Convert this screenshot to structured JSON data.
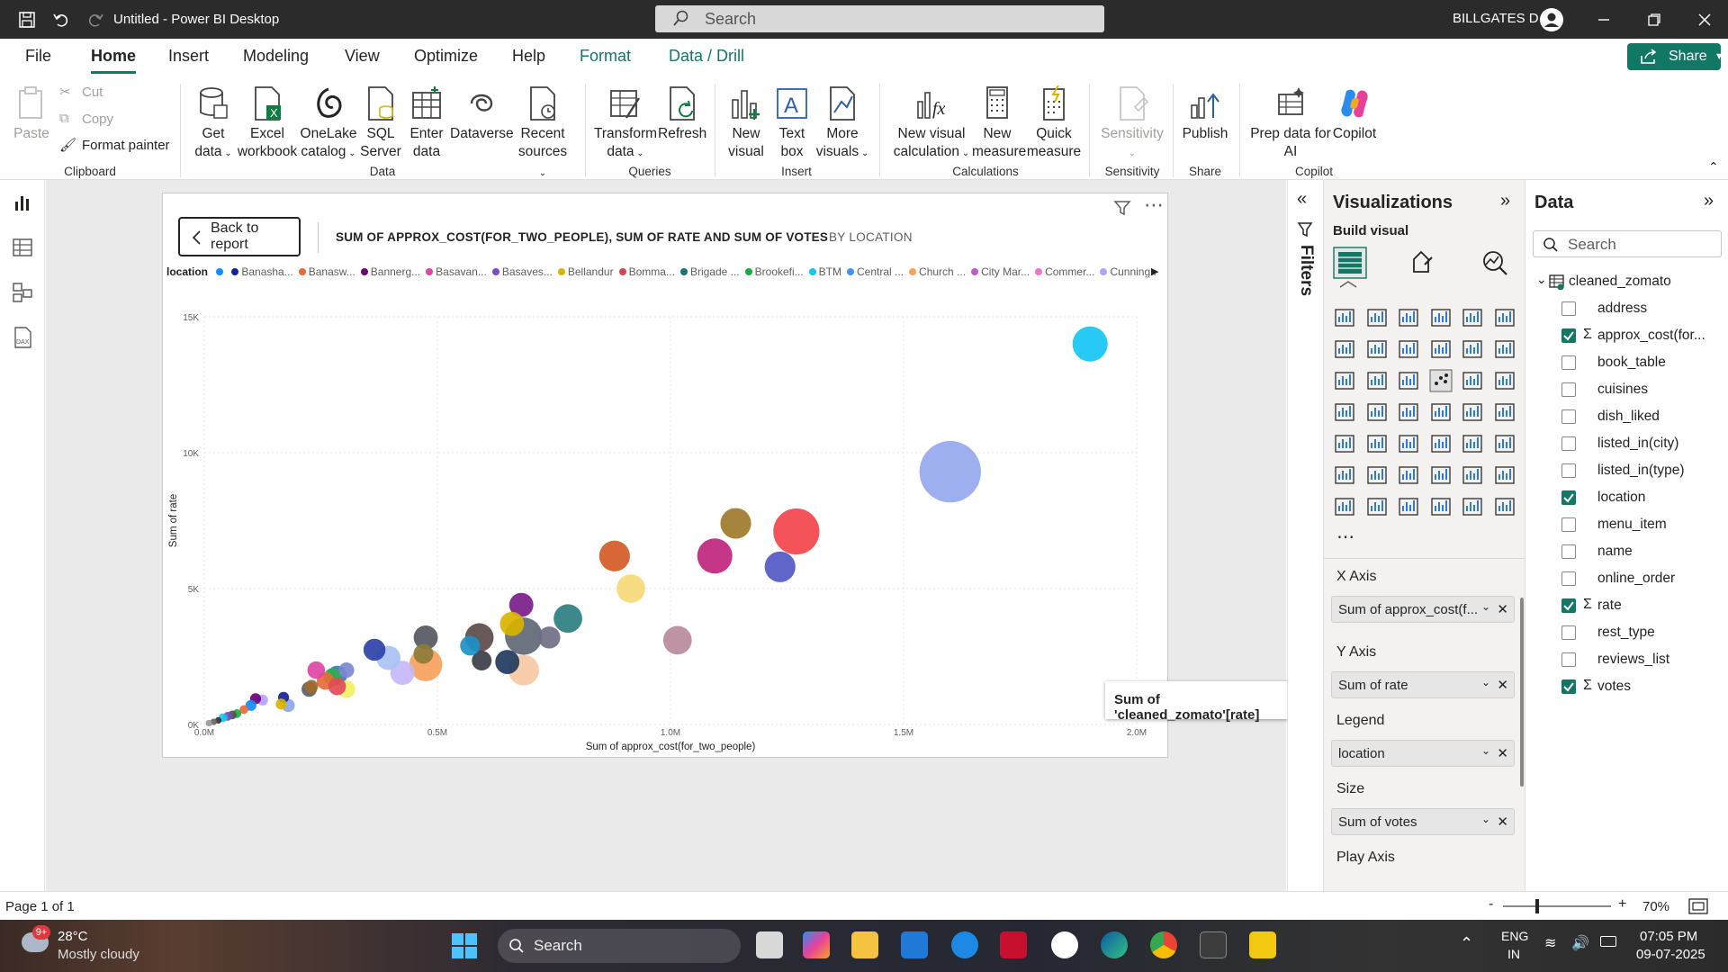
{
  "titlebar": {
    "app_title": "Untitled - Power BI Desktop",
    "search_placeholder": "Search",
    "user_name": "BILLGATES D"
  },
  "menu": {
    "tabs": [
      "File",
      "Home",
      "Insert",
      "Modeling",
      "View",
      "Optimize",
      "Help",
      "Format",
      "Data / Drill"
    ],
    "share": "Share"
  },
  "ribbon": {
    "clipboard": {
      "paste": "Paste",
      "cut": "Cut",
      "copy": "Copy",
      "format_painter": "Format painter",
      "group": "Clipboard"
    },
    "data": {
      "get_data_1": "Get",
      "get_data_2": "data",
      "excel_1": "Excel",
      "excel_2": "workbook",
      "onelake_1": "OneLake",
      "onelake_2": "catalog",
      "sql_1": "SQL",
      "sql_2": "Server",
      "enter_1": "Enter",
      "enter_2": "data",
      "dataverse": "Dataverse",
      "recent_1": "Recent",
      "recent_2": "sources",
      "group": "Data"
    },
    "queries": {
      "transform_1": "Transform",
      "transform_2": "data",
      "refresh": "Refresh",
      "group": "Queries"
    },
    "insert": {
      "new_visual_1": "New",
      "new_visual_2": "visual",
      "text_box_1": "Text",
      "text_box_2": "box",
      "more_visuals_1": "More",
      "more_visuals_2": "visuals",
      "group": "Insert"
    },
    "calculations": {
      "new_calc_1": "New visual",
      "new_calc_2": "calculation",
      "new_measure_1": "New",
      "new_measure_2": "measure",
      "quick_measure_1": "Quick",
      "quick_measure_2": "measure",
      "group": "Calculations"
    },
    "sensitivity": {
      "label": "Sensitivity",
      "group": "Sensitivity"
    },
    "share": {
      "publish": "Publish",
      "group": "Share"
    },
    "copilot": {
      "prep_1": "Prep data for",
      "prep_2": "AI",
      "copilot": "Copilot",
      "group": "Copilot"
    }
  },
  "visual": {
    "back_label": "Back to report",
    "title": "SUM OF APPROX_COST(FOR_TWO_PEOPLE), SUM OF RATE AND SUM OF VOTES",
    "by": "BY LOCATION",
    "legend_title": "location",
    "legend_items": [
      {
        "name": "",
        "color": "#118DFF"
      },
      {
        "name": "Banasha...",
        "color": "#12239E"
      },
      {
        "name": "Banasw...",
        "color": "#E66C37"
      },
      {
        "name": "Bannerg...",
        "color": "#6B007B"
      },
      {
        "name": "Basavan...",
        "color": "#E044A7"
      },
      {
        "name": "Basaves...",
        "color": "#744EC2"
      },
      {
        "name": "Bellandur",
        "color": "#D9B300"
      },
      {
        "name": "Bomma...",
        "color": "#D64550"
      },
      {
        "name": "Brigade ...",
        "color": "#197278"
      },
      {
        "name": "Brookefi...",
        "color": "#1AAB40"
      },
      {
        "name": "BTM",
        "color": "#15C6F4"
      },
      {
        "name": "Central ...",
        "color": "#4092FF"
      },
      {
        "name": "Church ...",
        "color": "#FFA058"
      },
      {
        "name": "City Mar...",
        "color": "#BE5DC9"
      },
      {
        "name": "Commer...",
        "color": "#F472D0"
      },
      {
        "name": "Cunning...",
        "color": "#B5A1FF"
      }
    ],
    "tooltip": "Sum of 'cleaned_zomato'[rate]"
  },
  "chart_data": {
    "type": "scatter",
    "title": "",
    "xlabel": "Sum of approx_cost(for_two_people)",
    "ylabel": "Sum of rate",
    "xlim": [
      0,
      2000000
    ],
    "ylim": [
      0,
      15000
    ],
    "x_ticks": [
      "0.0M",
      "0.5M",
      "1.0M",
      "1.5M",
      "2.0M"
    ],
    "y_ticks": [
      "0K",
      "5K",
      "10K",
      "15K"
    ],
    "size_field": "Sum of votes",
    "points": [
      {
        "x": 1900000,
        "y": 14000,
        "s": 16,
        "color": "#15C6F4"
      },
      {
        "x": 1600000,
        "y": 9300,
        "s": 28,
        "color": "#95A8EE"
      },
      {
        "x": 1270000,
        "y": 7100,
        "s": 21,
        "color": "#F2444B"
      },
      {
        "x": 1140000,
        "y": 7400,
        "s": 14,
        "color": "#9E7A2A"
      },
      {
        "x": 1095000,
        "y": 6200,
        "s": 16,
        "color": "#C0267C"
      },
      {
        "x": 1235000,
        "y": 5800,
        "s": 14,
        "color": "#5258C6"
      },
      {
        "x": 880000,
        "y": 6200,
        "s": 14,
        "color": "#D45A25"
      },
      {
        "x": 915000,
        "y": 5000,
        "s": 13,
        "color": "#F7D97A"
      },
      {
        "x": 1015000,
        "y": 3100,
        "s": 13,
        "color": "#B98A9D"
      },
      {
        "x": 780000,
        "y": 3900,
        "s": 13,
        "color": "#2B7E80"
      },
      {
        "x": 685000,
        "y": 3250,
        "s": 17,
        "color": "#606776"
      },
      {
        "x": 685000,
        "y": 2000,
        "s": 14,
        "color": "#F7C9A5"
      },
      {
        "x": 650000,
        "y": 2300,
        "s": 11,
        "color": "#223A5E"
      },
      {
        "x": 740000,
        "y": 3200,
        "s": 10,
        "color": "#6E6E85"
      },
      {
        "x": 680000,
        "y": 4400,
        "s": 11,
        "color": "#7A1D8A"
      },
      {
        "x": 660000,
        "y": 3700,
        "s": 11,
        "color": "#D9B300"
      },
      {
        "x": 590000,
        "y": 3200,
        "s": 13,
        "color": "#5B4A4A"
      },
      {
        "x": 595000,
        "y": 2350,
        "s": 9,
        "color": "#3D3D49"
      },
      {
        "x": 570000,
        "y": 2900,
        "s": 9,
        "color": "#1A91C7"
      },
      {
        "x": 475000,
        "y": 2200,
        "s": 15,
        "color": "#F7A25A"
      },
      {
        "x": 475000,
        "y": 3200,
        "s": 11,
        "color": "#54595F"
      },
      {
        "x": 470000,
        "y": 2600,
        "s": 9,
        "color": "#8D7B3A"
      },
      {
        "x": 425000,
        "y": 1900,
        "s": 11,
        "color": "#C7B8F7"
      },
      {
        "x": 395000,
        "y": 2450,
        "s": 11,
        "color": "#A9C2F2"
      },
      {
        "x": 365000,
        "y": 2750,
        "s": 10,
        "color": "#2C42AA"
      },
      {
        "x": 305000,
        "y": 1300,
        "s": 8,
        "color": "#F0F064"
      },
      {
        "x": 285000,
        "y": 1800,
        "s": 9,
        "color": "#3C7ABF"
      },
      {
        "x": 275000,
        "y": 1750,
        "s": 8,
        "color": "#2EAE4E"
      },
      {
        "x": 260000,
        "y": 1600,
        "s": 8,
        "color": "#E66C37"
      },
      {
        "x": 240000,
        "y": 2000,
        "s": 8,
        "color": "#E044A7"
      },
      {
        "x": 225000,
        "y": 1300,
        "s": 7,
        "color": "#606060"
      },
      {
        "x": 285000,
        "y": 1400,
        "s": 8,
        "color": "#E44A57"
      },
      {
        "x": 305000,
        "y": 2000,
        "s": 7,
        "color": "#7B88D2"
      },
      {
        "x": 230000,
        "y": 1400,
        "s": 6,
        "color": "#9E6A2E"
      },
      {
        "x": 180000,
        "y": 700,
        "s": 6,
        "color": "#8EA6E4"
      },
      {
        "x": 170000,
        "y": 1000,
        "s": 5,
        "color": "#12239E"
      },
      {
        "x": 165000,
        "y": 750,
        "s": 5,
        "color": "#D9B300"
      },
      {
        "x": 125000,
        "y": 900,
        "s": 5,
        "color": "#B5A1FF"
      },
      {
        "x": 110000,
        "y": 950,
        "s": 5,
        "color": "#6B007B"
      },
      {
        "x": 100000,
        "y": 700,
        "s": 5,
        "color": "#118DFF"
      },
      {
        "x": 85000,
        "y": 550,
        "s": 4,
        "color": "#E66C37"
      },
      {
        "x": 70000,
        "y": 400,
        "s": 4,
        "color": "#1AAB40"
      },
      {
        "x": 60000,
        "y": 350,
        "s": 4,
        "color": "#505050"
      },
      {
        "x": 50000,
        "y": 300,
        "s": 4,
        "color": "#744EC2"
      },
      {
        "x": 40000,
        "y": 250,
        "s": 4,
        "color": "#15C6F4"
      },
      {
        "x": 30000,
        "y": 150,
        "s": 3,
        "color": "#333333"
      },
      {
        "x": 20000,
        "y": 100,
        "s": 3,
        "color": "#666666"
      },
      {
        "x": 10000,
        "y": 50,
        "s": 3,
        "color": "#999999"
      }
    ]
  },
  "filters_label": "Filters",
  "viz_pane": {
    "title": "Visualizations",
    "build_visual": "Build visual",
    "wells": [
      {
        "label": "X Axis",
        "value": "Sum of approx_cost(f..."
      },
      {
        "label": "Y Axis",
        "value": "Sum of rate"
      },
      {
        "label": "Legend",
        "value": "location"
      },
      {
        "label": "Size",
        "value": "Sum of votes"
      },
      {
        "label": "Play Axis",
        "value": ""
      }
    ]
  },
  "data_pane": {
    "title": "Data",
    "search_placeholder": "Search",
    "table_name": "cleaned_zomato",
    "fields": [
      {
        "name": "address",
        "checked": false,
        "sigma": false
      },
      {
        "name": "approx_cost(for...",
        "checked": true,
        "sigma": true
      },
      {
        "name": "book_table",
        "checked": false,
        "sigma": false
      },
      {
        "name": "cuisines",
        "checked": false,
        "sigma": false
      },
      {
        "name": "dish_liked",
        "checked": false,
        "sigma": false
      },
      {
        "name": "listed_in(city)",
        "checked": false,
        "sigma": false
      },
      {
        "name": "listed_in(type)",
        "checked": false,
        "sigma": false
      },
      {
        "name": "location",
        "checked": true,
        "sigma": false
      },
      {
        "name": "menu_item",
        "checked": false,
        "sigma": false
      },
      {
        "name": "name",
        "checked": false,
        "sigma": false
      },
      {
        "name": "online_order",
        "checked": false,
        "sigma": false
      },
      {
        "name": "rate",
        "checked": true,
        "sigma": true
      },
      {
        "name": "rest_type",
        "checked": false,
        "sigma": false
      },
      {
        "name": "reviews_list",
        "checked": false,
        "sigma": false
      },
      {
        "name": "votes",
        "checked": true,
        "sigma": true
      }
    ]
  },
  "status": {
    "page": "Page 1 of 1",
    "zoom": "70%"
  },
  "taskbar": {
    "weather_temp": "28°C",
    "weather_desc": "Mostly cloudy",
    "search": "Search",
    "lang1": "ENG",
    "lang2": "IN",
    "time": "07:05 PM",
    "date": "09-07-2025",
    "badge": "9+"
  },
  "colors": {
    "accent": "#117865",
    "titlebar": "#2b2b2b"
  }
}
